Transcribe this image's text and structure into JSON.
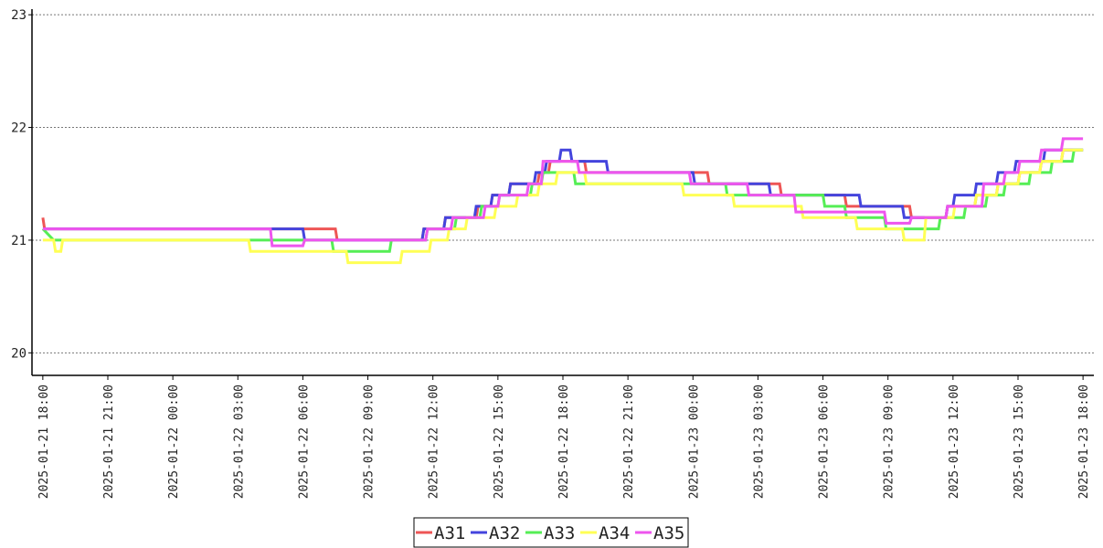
{
  "chart_data": {
    "type": "line",
    "title": "",
    "xlabel": "",
    "ylabel": "",
    "ylim": [
      19.8,
      23.05
    ],
    "yticks": [
      20,
      21,
      22,
      23
    ],
    "xlim": [
      "2025-01-21 17:30",
      "2025-01-23 18:30"
    ],
    "xticks": [
      "2025-01-21 18:00",
      "2025-01-21 21:00",
      "2025-01-22 00:00",
      "2025-01-22 03:00",
      "2025-01-22 06:00",
      "2025-01-22 09:00",
      "2025-01-22 12:00",
      "2025-01-22 15:00",
      "2025-01-22 18:00",
      "2025-01-22 21:00",
      "2025-01-23 00:00",
      "2025-01-23 03:00",
      "2025-01-23 06:00",
      "2025-01-23 09:00",
      "2025-01-23 12:00",
      "2025-01-23 15:00",
      "2025-01-23 18:00"
    ],
    "grid": "horizontal-dotted",
    "legend_position": "bottom-center",
    "series": [
      {
        "name": "A31",
        "color": "#ee5555",
        "points": [
          [
            "2025-01-21 18:00",
            21.2
          ],
          [
            "2025-01-21 18:05",
            21.1
          ],
          [
            "2025-01-22 07:30",
            21.1
          ],
          [
            "2025-01-22 07:35",
            21.0
          ],
          [
            "2025-01-22 11:30",
            21.0
          ],
          [
            "2025-01-22 11:35",
            21.1
          ],
          [
            "2025-01-22 12:30",
            21.1
          ],
          [
            "2025-01-22 12:35",
            21.2
          ],
          [
            "2025-01-22 14:00",
            21.2
          ],
          [
            "2025-01-22 14:05",
            21.3
          ],
          [
            "2025-01-22 14:40",
            21.3
          ],
          [
            "2025-01-22 14:45",
            21.4
          ],
          [
            "2025-01-22 15:30",
            21.4
          ],
          [
            "2025-01-22 15:35",
            21.5
          ],
          [
            "2025-01-22 16:50",
            21.5
          ],
          [
            "2025-01-22 16:55",
            21.6
          ],
          [
            "2025-01-22 17:20",
            21.6
          ],
          [
            "2025-01-22 17:25",
            21.7
          ],
          [
            "2025-01-22 19:00",
            21.7
          ],
          [
            "2025-01-22 19:05",
            21.6
          ],
          [
            "2025-01-23 00:40",
            21.6
          ],
          [
            "2025-01-23 00:45",
            21.5
          ],
          [
            "2025-01-23 04:00",
            21.5
          ],
          [
            "2025-01-23 04:05",
            21.4
          ],
          [
            "2025-01-23 07:00",
            21.4
          ],
          [
            "2025-01-23 07:05",
            21.3
          ],
          [
            "2025-01-23 10:00",
            21.3
          ],
          [
            "2025-01-23 10:05",
            21.2
          ],
          [
            "2025-01-23 11:40",
            21.2
          ],
          [
            "2025-01-23 11:45",
            21.3
          ],
          [
            "2025-01-23 13:00",
            21.3
          ],
          [
            "2025-01-23 13:05",
            21.4
          ],
          [
            "2025-01-23 14:00",
            21.4
          ],
          [
            "2025-01-23 14:05",
            21.5
          ],
          [
            "2025-01-23 15:00",
            21.5
          ],
          [
            "2025-01-23 15:05",
            21.6
          ],
          [
            "2025-01-23 16:00",
            21.6
          ],
          [
            "2025-01-23 16:05",
            21.7
          ],
          [
            "2025-01-23 17:00",
            21.7
          ],
          [
            "2025-01-23 17:05",
            21.8
          ],
          [
            "2025-01-23 18:00",
            21.8
          ]
        ]
      },
      {
        "name": "A32",
        "color": "#4444dd",
        "points": [
          [
            "2025-01-21 18:00",
            21.1
          ],
          [
            "2025-01-22 06:00",
            21.1
          ],
          [
            "2025-01-22 06:05",
            21.0
          ],
          [
            "2025-01-22 11:30",
            21.0
          ],
          [
            "2025-01-22 11:35",
            21.1
          ],
          [
            "2025-01-22 12:30",
            21.1
          ],
          [
            "2025-01-22 12:35",
            21.2
          ],
          [
            "2025-01-22 13:55",
            21.2
          ],
          [
            "2025-01-22 14:00",
            21.3
          ],
          [
            "2025-01-22 14:40",
            21.3
          ],
          [
            "2025-01-22 14:45",
            21.4
          ],
          [
            "2025-01-22 15:30",
            21.4
          ],
          [
            "2025-01-22 15:35",
            21.5
          ],
          [
            "2025-01-22 16:40",
            21.5
          ],
          [
            "2025-01-22 16:45",
            21.6
          ],
          [
            "2025-01-22 17:10",
            21.6
          ],
          [
            "2025-01-22 17:15",
            21.7
          ],
          [
            "2025-01-22 17:50",
            21.7
          ],
          [
            "2025-01-22 17:55",
            21.8
          ],
          [
            "2025-01-22 18:20",
            21.8
          ],
          [
            "2025-01-22 18:25",
            21.7
          ],
          [
            "2025-01-22 20:00",
            21.7
          ],
          [
            "2025-01-22 20:05",
            21.6
          ],
          [
            "2025-01-23 00:00",
            21.6
          ],
          [
            "2025-01-23 00:05",
            21.5
          ],
          [
            "2025-01-23 03:30",
            21.5
          ],
          [
            "2025-01-23 03:35",
            21.4
          ],
          [
            "2025-01-23 07:40",
            21.4
          ],
          [
            "2025-01-23 07:45",
            21.3
          ],
          [
            "2025-01-23 09:40",
            21.3
          ],
          [
            "2025-01-23 09:45",
            21.2
          ],
          [
            "2025-01-23 11:40",
            21.2
          ],
          [
            "2025-01-23 11:45",
            21.3
          ],
          [
            "2025-01-23 12:00",
            21.3
          ],
          [
            "2025-01-23 12:05",
            21.4
          ],
          [
            "2025-01-23 13:00",
            21.4
          ],
          [
            "2025-01-23 13:05",
            21.5
          ],
          [
            "2025-01-23 14:00",
            21.5
          ],
          [
            "2025-01-23 14:05",
            21.6
          ],
          [
            "2025-01-23 14:50",
            21.6
          ],
          [
            "2025-01-23 14:55",
            21.7
          ],
          [
            "2025-01-23 16:10",
            21.7
          ],
          [
            "2025-01-23 16:15",
            21.8
          ],
          [
            "2025-01-23 18:00",
            21.8
          ]
        ]
      },
      {
        "name": "A33",
        "color": "#55ee55",
        "points": [
          [
            "2025-01-21 18:00",
            21.1
          ],
          [
            "2025-01-21 18:30",
            21.0
          ],
          [
            "2025-01-22 07:20",
            21.0
          ],
          [
            "2025-01-22 07:25",
            20.9
          ],
          [
            "2025-01-22 10:00",
            20.9
          ],
          [
            "2025-01-22 10:05",
            21.0
          ],
          [
            "2025-01-22 11:40",
            21.0
          ],
          [
            "2025-01-22 11:45",
            21.1
          ],
          [
            "2025-01-22 13:00",
            21.1
          ],
          [
            "2025-01-22 13:05",
            21.2
          ],
          [
            "2025-01-22 14:10",
            21.2
          ],
          [
            "2025-01-22 14:15",
            21.3
          ],
          [
            "2025-01-22 15:00",
            21.3
          ],
          [
            "2025-01-22 15:05",
            21.4
          ],
          [
            "2025-01-22 16:30",
            21.4
          ],
          [
            "2025-01-22 16:35",
            21.5
          ],
          [
            "2025-01-22 17:00",
            21.5
          ],
          [
            "2025-01-22 17:05",
            21.6
          ],
          [
            "2025-01-22 18:30",
            21.6
          ],
          [
            "2025-01-22 18:35",
            21.5
          ],
          [
            "2025-01-23 01:30",
            21.5
          ],
          [
            "2025-01-23 01:35",
            21.4
          ],
          [
            "2025-01-23 06:00",
            21.4
          ],
          [
            "2025-01-23 06:05",
            21.3
          ],
          [
            "2025-01-23 07:00",
            21.3
          ],
          [
            "2025-01-23 07:05",
            21.2
          ],
          [
            "2025-01-23 08:50",
            21.2
          ],
          [
            "2025-01-23 08:55",
            21.1
          ],
          [
            "2025-01-23 11:20",
            21.1
          ],
          [
            "2025-01-23 11:25",
            21.2
          ],
          [
            "2025-01-23 12:30",
            21.2
          ],
          [
            "2025-01-23 12:35",
            21.3
          ],
          [
            "2025-01-23 13:30",
            21.3
          ],
          [
            "2025-01-23 13:35",
            21.4
          ],
          [
            "2025-01-23 14:20",
            21.4
          ],
          [
            "2025-01-23 14:25",
            21.5
          ],
          [
            "2025-01-23 15:30",
            21.5
          ],
          [
            "2025-01-23 15:35",
            21.6
          ],
          [
            "2025-01-23 16:30",
            21.6
          ],
          [
            "2025-01-23 16:35",
            21.7
          ],
          [
            "2025-01-23 17:30",
            21.7
          ],
          [
            "2025-01-23 17:35",
            21.8
          ],
          [
            "2025-01-23 18:00",
            21.8
          ]
        ]
      },
      {
        "name": "A34",
        "color": "#ffff55",
        "points": [
          [
            "2025-01-21 18:00",
            21.0
          ],
          [
            "2025-01-21 18:30",
            21.0
          ],
          [
            "2025-01-21 18:35",
            20.9
          ],
          [
            "2025-01-21 18:50",
            20.9
          ],
          [
            "2025-01-21 18:55",
            21.0
          ],
          [
            "2025-01-22 03:30",
            21.0
          ],
          [
            "2025-01-22 03:35",
            20.9
          ],
          [
            "2025-01-22 08:00",
            20.9
          ],
          [
            "2025-01-22 08:05",
            20.8
          ],
          [
            "2025-01-22 10:30",
            20.8
          ],
          [
            "2025-01-22 10:35",
            20.9
          ],
          [
            "2025-01-22 11:50",
            20.9
          ],
          [
            "2025-01-22 11:55",
            21.0
          ],
          [
            "2025-01-22 12:40",
            21.0
          ],
          [
            "2025-01-22 12:45",
            21.1
          ],
          [
            "2025-01-22 13:30",
            21.1
          ],
          [
            "2025-01-22 13:35",
            21.2
          ],
          [
            "2025-01-22 14:50",
            21.2
          ],
          [
            "2025-01-22 14:55",
            21.3
          ],
          [
            "2025-01-22 15:50",
            21.3
          ],
          [
            "2025-01-22 15:55",
            21.4
          ],
          [
            "2025-01-22 16:50",
            21.4
          ],
          [
            "2025-01-22 16:55",
            21.5
          ],
          [
            "2025-01-22 17:40",
            21.5
          ],
          [
            "2025-01-22 17:45",
            21.6
          ],
          [
            "2025-01-22 19:00",
            21.6
          ],
          [
            "2025-01-22 19:05",
            21.5
          ],
          [
            "2025-01-22 23:30",
            21.5
          ],
          [
            "2025-01-22 23:35",
            21.4
          ],
          [
            "2025-01-23 01:50",
            21.4
          ],
          [
            "2025-01-23 01:55",
            21.3
          ],
          [
            "2025-01-23 05:00",
            21.3
          ],
          [
            "2025-01-23 05:05",
            21.2
          ],
          [
            "2025-01-23 07:30",
            21.2
          ],
          [
            "2025-01-23 07:35",
            21.1
          ],
          [
            "2025-01-23 09:40",
            21.1
          ],
          [
            "2025-01-23 09:45",
            21.0
          ],
          [
            "2025-01-23 10:40",
            21.0
          ],
          [
            "2025-01-23 10:45",
            21.2
          ],
          [
            "2025-01-23 12:00",
            21.2
          ],
          [
            "2025-01-23 12:05",
            21.3
          ],
          [
            "2025-01-23 13:00",
            21.3
          ],
          [
            "2025-01-23 13:05",
            21.4
          ],
          [
            "2025-01-23 14:00",
            21.4
          ],
          [
            "2025-01-23 14:05",
            21.5
          ],
          [
            "2025-01-23 15:00",
            21.5
          ],
          [
            "2025-01-23 15:05",
            21.6
          ],
          [
            "2025-01-23 16:00",
            21.6
          ],
          [
            "2025-01-23 16:05",
            21.7
          ],
          [
            "2025-01-23 17:00",
            21.7
          ],
          [
            "2025-01-23 17:05",
            21.8
          ],
          [
            "2025-01-23 18:00",
            21.8
          ]
        ]
      },
      {
        "name": "A35",
        "color": "#ee55ee",
        "points": [
          [
            "2025-01-21 18:00",
            21.1
          ],
          [
            "2025-01-22 04:30",
            21.1
          ],
          [
            "2025-01-22 04:35",
            20.95
          ],
          [
            "2025-01-22 06:00",
            20.95
          ],
          [
            "2025-01-22 06:05",
            21.0
          ],
          [
            "2025-01-22 11:40",
            21.0
          ],
          [
            "2025-01-22 11:45",
            21.1
          ],
          [
            "2025-01-22 12:50",
            21.1
          ],
          [
            "2025-01-22 12:55",
            21.2
          ],
          [
            "2025-01-22 14:20",
            21.2
          ],
          [
            "2025-01-22 14:25",
            21.3
          ],
          [
            "2025-01-22 15:00",
            21.3
          ],
          [
            "2025-01-22 15:05",
            21.4
          ],
          [
            "2025-01-22 16:20",
            21.4
          ],
          [
            "2025-01-22 16:25",
            21.5
          ],
          [
            "2025-01-22 17:00",
            21.5
          ],
          [
            "2025-01-22 17:05",
            21.7
          ],
          [
            "2025-01-22 18:40",
            21.7
          ],
          [
            "2025-01-22 18:45",
            21.6
          ],
          [
            "2025-01-22 23:50",
            21.6
          ],
          [
            "2025-01-22 23:55",
            21.5
          ],
          [
            "2025-01-23 02:30",
            21.5
          ],
          [
            "2025-01-23 02:35",
            21.4
          ],
          [
            "2025-01-23 04:40",
            21.4
          ],
          [
            "2025-01-23 04:45",
            21.25
          ],
          [
            "2025-01-23 08:50",
            21.25
          ],
          [
            "2025-01-23 08:55",
            21.15
          ],
          [
            "2025-01-23 10:00",
            21.15
          ],
          [
            "2025-01-23 10:05",
            21.2
          ],
          [
            "2025-01-23 11:40",
            21.2
          ],
          [
            "2025-01-23 11:45",
            21.3
          ],
          [
            "2025-01-23 13:20",
            21.3
          ],
          [
            "2025-01-23 13:25",
            21.5
          ],
          [
            "2025-01-23 14:20",
            21.5
          ],
          [
            "2025-01-23 14:25",
            21.6
          ],
          [
            "2025-01-23 15:00",
            21.6
          ],
          [
            "2025-01-23 15:05",
            21.7
          ],
          [
            "2025-01-23 16:00",
            21.7
          ],
          [
            "2025-01-23 16:05",
            21.8
          ],
          [
            "2025-01-23 17:00",
            21.8
          ],
          [
            "2025-01-23 17:05",
            21.9
          ],
          [
            "2025-01-23 18:00",
            21.9
          ]
        ]
      }
    ]
  }
}
